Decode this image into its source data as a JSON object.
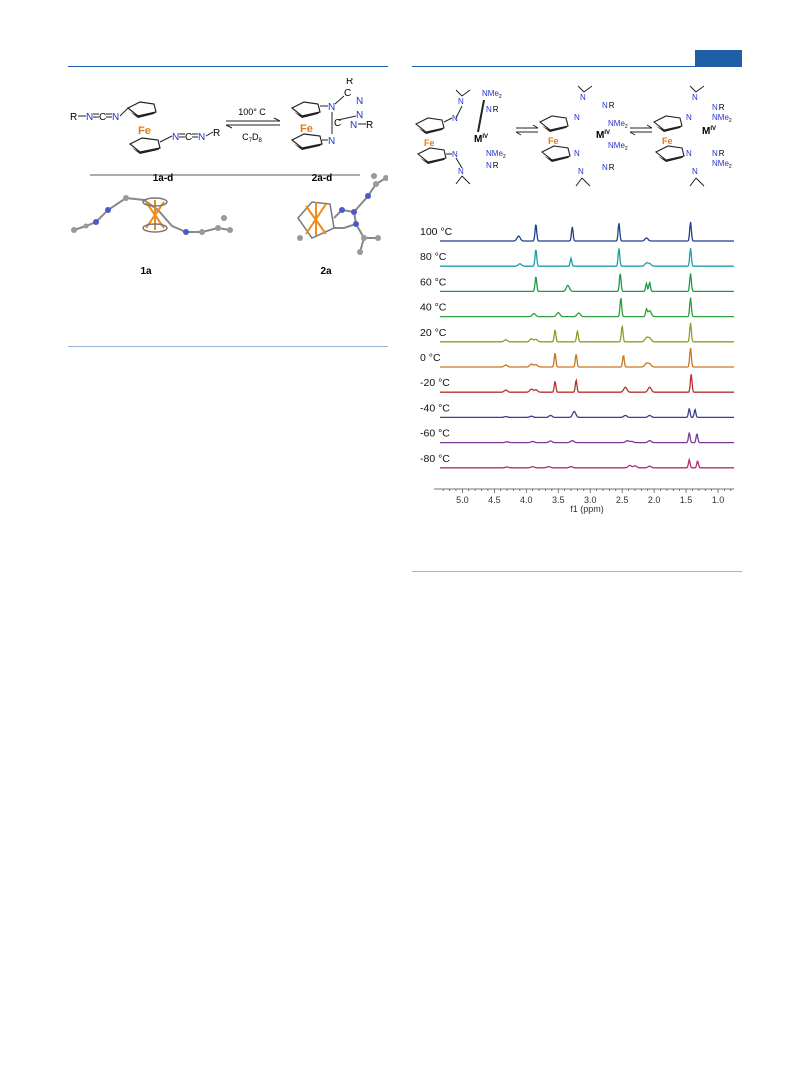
{
  "scheme_left": {
    "fe": "Fe",
    "reactant_r": "R",
    "reactant_n": "N",
    "reactant_c": "C",
    "arrow_top": "100° C",
    "arrow_bottom": "C7D8",
    "arrow_bottom_main": "C",
    "arrow_bottom_sub1": "7",
    "arrow_bottom_mid": "D",
    "arrow_bottom_sub2": "8",
    "label_reactant": "1a-d",
    "label_product": "2a-d",
    "crystal_label_1": "1a",
    "crystal_label_2": "2a"
  },
  "scheme_right": {
    "fe": "Fe",
    "metal": "M",
    "oxidation": "IV",
    "nme2": "NMe",
    "sub2": "2",
    "r": "R",
    "n": "N"
  },
  "chart_data": {
    "type": "line",
    "xlabel": "f1 (ppm)",
    "xlim": [
      5.35,
      0.75
    ],
    "x_reversed": true,
    "xticks": [
      "5.0",
      "4.5",
      "4.0",
      "3.5",
      "3.0",
      "2.5",
      "2.0",
      "1.5",
      "1.0"
    ],
    "xtick_values": [
      5.0,
      4.5,
      4.0,
      3.5,
      3.0,
      2.5,
      2.0,
      1.5,
      1.0
    ],
    "series": [
      {
        "name": "100 °C",
        "color": "#1f3f8c",
        "peaks": [
          [
            4.12,
            0.25
          ],
          [
            3.85,
            0.85
          ],
          [
            3.28,
            0.7
          ],
          [
            2.55,
            0.9
          ],
          [
            2.12,
            0.15
          ],
          [
            1.43,
            0.95
          ]
        ]
      },
      {
        "name": "80 °C",
        "color": "#1e9ea6",
        "peaks": [
          [
            4.1,
            0.12
          ],
          [
            3.85,
            0.85
          ],
          [
            3.3,
            0.4
          ],
          [
            2.55,
            0.9
          ],
          [
            2.12,
            0.15
          ],
          [
            2.07,
            0.12
          ],
          [
            1.43,
            0.9
          ]
        ]
      },
      {
        "name": "60 °C",
        "color": "#1e9a4e",
        "peaks": [
          [
            3.85,
            0.75
          ],
          [
            3.35,
            0.3
          ],
          [
            2.53,
            0.9
          ],
          [
            2.12,
            0.4
          ],
          [
            2.07,
            0.45
          ],
          [
            1.43,
            0.9
          ]
        ]
      },
      {
        "name": "40 °C",
        "color": "#2f9e3a",
        "peaks": [
          [
            3.88,
            0.15
          ],
          [
            3.5,
            0.2
          ],
          [
            3.18,
            0.18
          ],
          [
            2.52,
            0.95
          ],
          [
            2.12,
            0.35
          ],
          [
            2.07,
            0.3
          ],
          [
            1.43,
            0.95
          ]
        ]
      },
      {
        "name": "20 °C",
        "color": "#8aa12a",
        "peaks": [
          [
            4.32,
            0.1
          ],
          [
            3.92,
            0.15
          ],
          [
            3.85,
            0.12
          ],
          [
            3.55,
            0.6
          ],
          [
            3.2,
            0.55
          ],
          [
            2.5,
            0.8
          ],
          [
            2.12,
            0.2
          ],
          [
            2.07,
            0.18
          ],
          [
            1.43,
            0.95
          ]
        ]
      },
      {
        "name": "0 °C",
        "color": "#c8771f",
        "peaks": [
          [
            4.32,
            0.1
          ],
          [
            3.92,
            0.15
          ],
          [
            3.85,
            0.12
          ],
          [
            3.55,
            0.7
          ],
          [
            3.22,
            0.65
          ],
          [
            2.48,
            0.6
          ],
          [
            2.12,
            0.18
          ],
          [
            2.07,
            0.15
          ],
          [
            1.43,
            0.95
          ]
        ]
      },
      {
        "name": "-20 °C",
        "color": "#b8332a",
        "peaks": [
          [
            4.32,
            0.1
          ],
          [
            3.92,
            0.15
          ],
          [
            3.85,
            0.12
          ],
          [
            3.55,
            0.55
          ],
          [
            3.22,
            0.6
          ],
          [
            2.45,
            0.25
          ],
          [
            2.07,
            0.25
          ],
          [
            1.42,
            0.9
          ]
        ]
      },
      {
        "name": "-40 °C",
        "color": "#3b3f8e",
        "peaks": [
          [
            4.32,
            0.04
          ],
          [
            3.92,
            0.06
          ],
          [
            3.62,
            0.1
          ],
          [
            3.25,
            0.3
          ],
          [
            2.45,
            0.1
          ],
          [
            2.07,
            0.1
          ],
          [
            1.45,
            0.45
          ],
          [
            1.36,
            0.4
          ]
        ]
      },
      {
        "name": "-60 °C",
        "color": "#7a3a96",
        "peaks": [
          [
            4.3,
            0.04
          ],
          [
            3.9,
            0.06
          ],
          [
            3.62,
            0.08
          ],
          [
            3.28,
            0.1
          ],
          [
            2.42,
            0.1
          ],
          [
            2.35,
            0.06
          ],
          [
            2.07,
            0.1
          ],
          [
            1.45,
            0.5
          ],
          [
            1.33,
            0.45
          ]
        ]
      },
      {
        "name": "-80 °C",
        "color": "#b02e76",
        "peaks": [
          [
            4.3,
            0.04
          ],
          [
            3.9,
            0.06
          ],
          [
            3.65,
            0.06
          ],
          [
            3.3,
            0.06
          ],
          [
            2.38,
            0.12
          ],
          [
            2.3,
            0.1
          ],
          [
            2.07,
            0.08
          ],
          [
            1.45,
            0.4
          ],
          [
            1.32,
            0.35
          ]
        ]
      }
    ]
  }
}
